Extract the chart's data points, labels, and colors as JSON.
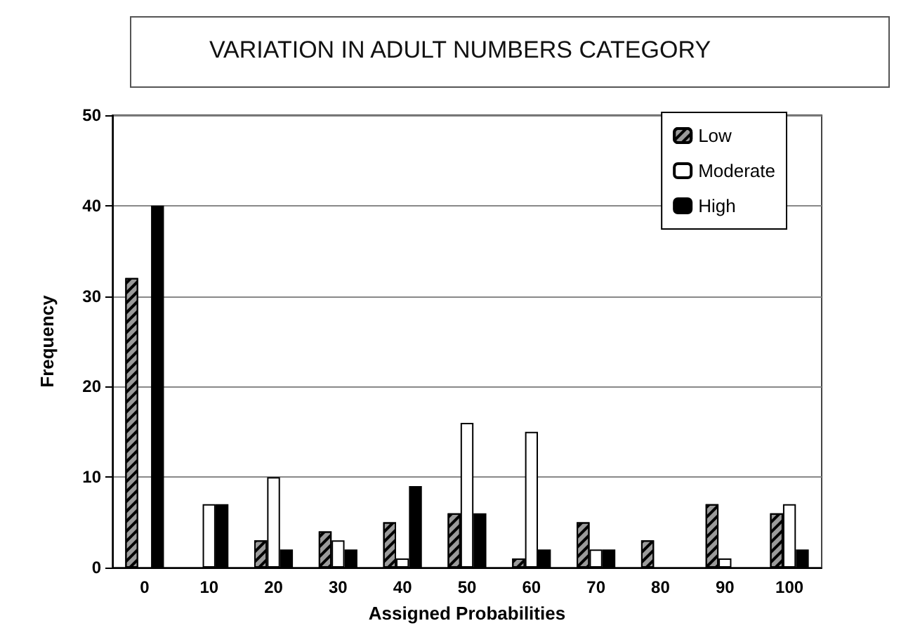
{
  "chart_data": {
    "type": "bar",
    "title": "VARIATION IN ADULT NUMBERS CATEGORY",
    "xlabel": "Assigned Probabilities",
    "ylabel": "Frequency",
    "categories": [
      "0",
      "10",
      "20",
      "30",
      "40",
      "50",
      "60",
      "70",
      "80",
      "90",
      "100"
    ],
    "series": [
      {
        "name": "Low",
        "color": "#9a9a9a",
        "values": [
          32,
          0,
          3,
          4,
          5,
          6,
          1,
          5,
          3,
          7,
          6
        ]
      },
      {
        "name": "Moderate",
        "color": "#ffffff",
        "values": [
          0,
          7,
          10,
          3,
          1,
          16,
          15,
          2,
          0,
          1,
          7
        ]
      },
      {
        "name": "High",
        "color": "#000000",
        "values": [
          40,
          7,
          2,
          2,
          9,
          6,
          2,
          2,
          0,
          0,
          2
        ]
      }
    ],
    "ylim": [
      0,
      50
    ],
    "yticks": [
      0,
      10,
      20,
      30,
      40,
      50
    ],
    "grid": "y",
    "legend": "top right"
  }
}
